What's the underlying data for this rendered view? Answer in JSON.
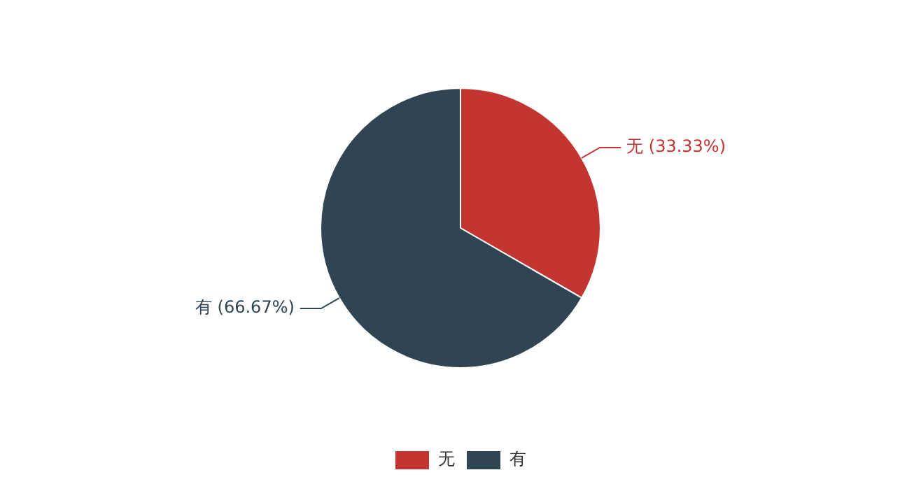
{
  "chart_data": {
    "type": "pie",
    "categories": [
      "无",
      "有"
    ],
    "values": [
      33.33,
      66.67
    ],
    "colors": [
      "#c23531",
      "#2f4554"
    ],
    "value_labels": [
      "无 (33.33%)",
      "有 (66.67%)"
    ],
    "legend": "bottom"
  }
}
